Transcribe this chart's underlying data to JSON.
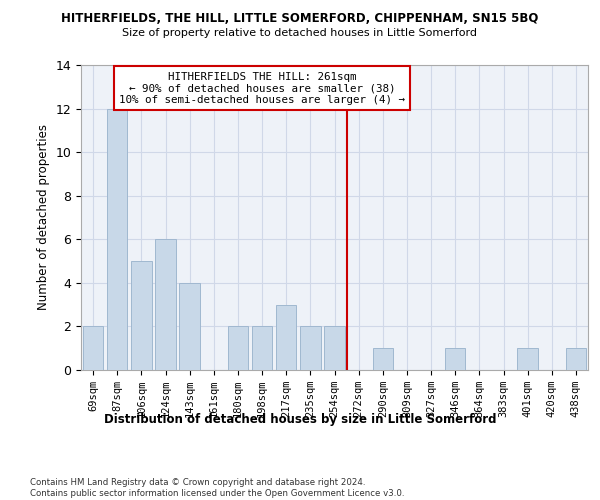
{
  "title1": "HITHERFIELDS, THE HILL, LITTLE SOMERFORD, CHIPPENHAM, SN15 5BQ",
  "title2": "Size of property relative to detached houses in Little Somerford",
  "xlabel": "Distribution of detached houses by size in Little Somerford",
  "ylabel": "Number of detached properties",
  "categories": [
    "69sqm",
    "87sqm",
    "106sqm",
    "124sqm",
    "143sqm",
    "161sqm",
    "180sqm",
    "198sqm",
    "217sqm",
    "235sqm",
    "254sqm",
    "272sqm",
    "290sqm",
    "309sqm",
    "327sqm",
    "346sqm",
    "364sqm",
    "383sqm",
    "401sqm",
    "420sqm",
    "438sqm"
  ],
  "values": [
    2,
    12,
    5,
    6,
    4,
    0,
    2,
    2,
    3,
    2,
    2,
    0,
    1,
    0,
    0,
    1,
    0,
    0,
    1,
    0,
    1
  ],
  "bar_color": "#c8d8e8",
  "bar_edge_color": "#a0b8d0",
  "grid_color": "#d0d8e8",
  "background_color": "#eef2f8",
  "vline_x_index": 10.5,
  "vline_color": "#cc0000",
  "annotation_line1": "HITHERFIELDS THE HILL: 261sqm",
  "annotation_line2": "← 90% of detached houses are smaller (38)",
  "annotation_line3": "10% of semi-detached houses are larger (4) →",
  "footer_text": "Contains HM Land Registry data © Crown copyright and database right 2024.\nContains public sector information licensed under the Open Government Licence v3.0.",
  "ylim": [
    0,
    14
  ],
  "yticks": [
    0,
    2,
    4,
    6,
    8,
    10,
    12,
    14
  ]
}
